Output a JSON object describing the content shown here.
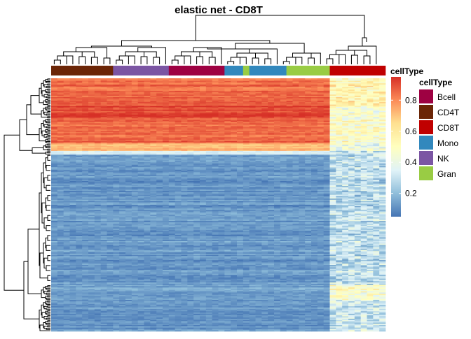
{
  "chart_data": {
    "type": "heatmap",
    "title": "elastic net - CD8T",
    "annotation": {
      "label": "cellType",
      "samples": [
        {
          "cellType": "CD4T",
          "count": 10
        },
        {
          "cellType": "NK",
          "count": 9
        },
        {
          "cellType": "Bcell",
          "count": 9
        },
        {
          "cellType": "Mono",
          "count": 3
        },
        {
          "cellType": "Gran",
          "count": 1
        },
        {
          "cellType": "Mono",
          "count": 6
        },
        {
          "cellType": "Gran",
          "count": 7
        },
        {
          "cellType": "CD8T",
          "count": 9
        }
      ]
    },
    "color_scale": {
      "title": "cellType",
      "min": 0.05,
      "max": 0.95,
      "ticks": [
        0.2,
        0.4,
        0.6,
        0.8
      ],
      "colors": [
        "#4575b4",
        "#91bfdb",
        "#e0f3f8",
        "#ffffbf",
        "#fee090",
        "#fc8d59",
        "#d73027"
      ]
    },
    "legend": {
      "title": "cellType",
      "entries": [
        {
          "label": "Bcell",
          "color": "#9e0142"
        },
        {
          "label": "CD4T",
          "color": "#6b2506"
        },
        {
          "label": "CD8T",
          "color": "#c00000"
        },
        {
          "label": "Mono",
          "color": "#3288bd"
        },
        {
          "label": "NK",
          "color": "#7b55a3"
        },
        {
          "label": "Gran",
          "color": "#99cc44"
        }
      ]
    },
    "row_blocks": [
      {
        "rows": 22,
        "main_value": 0.85,
        "cd8t_value": 0.55
      },
      {
        "rows": 10,
        "main_value": 0.92,
        "cd8t_value": 0.45
      },
      {
        "rows": 20,
        "main_value": 0.86,
        "cd8t_value": 0.48
      },
      {
        "rows": 6,
        "main_value": 0.72,
        "cd8t_value": 0.42
      },
      {
        "rows": 3,
        "main_value": 0.35,
        "cd8t_value": 0.3
      },
      {
        "rows": 104,
        "main_value": 0.12,
        "cd8t_value": 0.28
      },
      {
        "rows": 12,
        "main_value": 0.14,
        "cd8t_value": 0.48
      },
      {
        "rows": 25,
        "main_value": 0.12,
        "cd8t_value": 0.32
      }
    ],
    "xlabel": "",
    "ylabel": ""
  }
}
